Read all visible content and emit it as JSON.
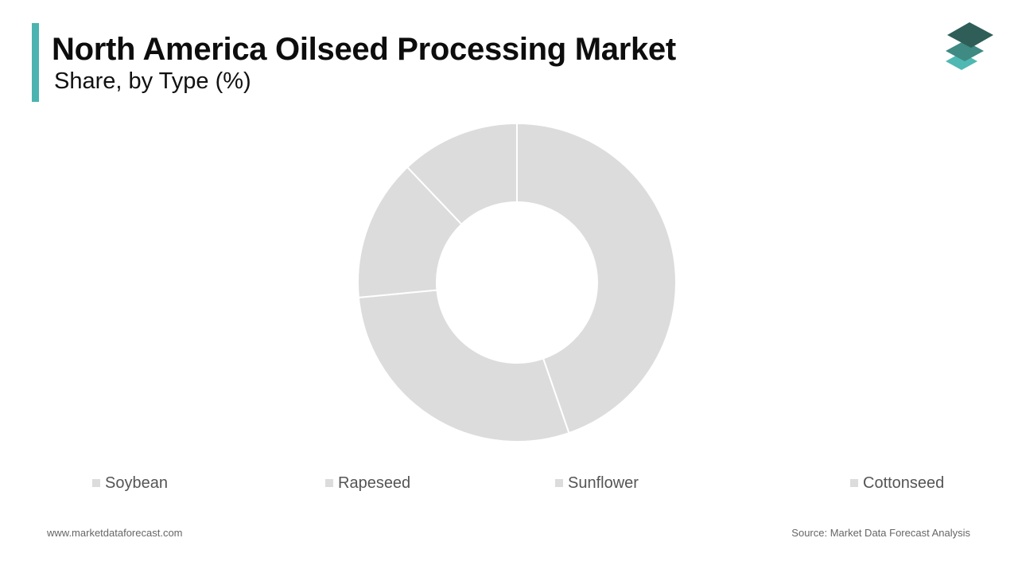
{
  "header": {
    "title": "North America Oilseed Processing Market",
    "subtitle": "Share, by Type (%)"
  },
  "colors": {
    "accent": "#4bb3b0",
    "slice": "#dcdcdc",
    "slice_border": "#ffffff",
    "legend_swatch": "#dcdcdc",
    "logo_dark": "#2e5e57",
    "logo_mid": "#3f8a83",
    "logo_light": "#4fb8b3"
  },
  "logo": {
    "icon": "stacked-layers-icon"
  },
  "chart_data": {
    "type": "pie",
    "donut": true,
    "categories": [
      "Soybean",
      "Rapeseed",
      "Sunflower",
      "Cottonseed"
    ],
    "values": [
      44.7,
      28.8,
      14.4,
      12.1
    ],
    "legend_position": "bottom"
  },
  "footer": {
    "website": "www.marketdataforecast.com",
    "source": "Source: Market Data Forecast Analysis"
  }
}
